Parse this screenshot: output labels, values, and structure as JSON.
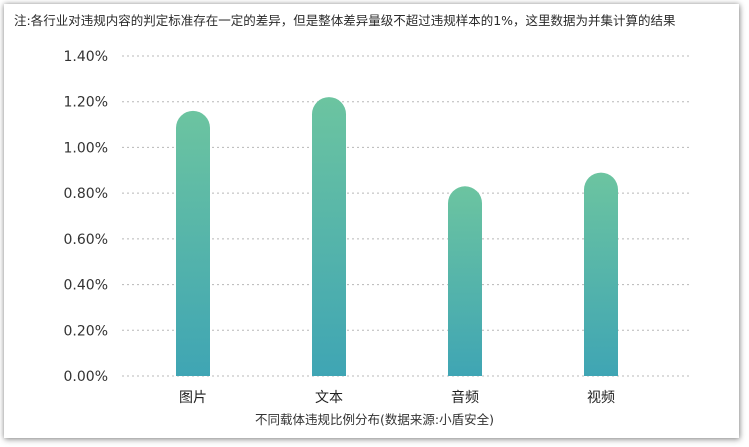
{
  "note": "注:各行业对违规内容的判定标准存在一定的差异，但是整体差异量级不超过违规样本的1%，这里数据为并集计算的结果",
  "source": "不同载体违规比例分布(数据来源:小盾安全)",
  "colors": {
    "bar_top": "#6cc4a0",
    "bar_bottom": "#3fa5b4",
    "grid": "#b8b8b8"
  },
  "chart_data": {
    "type": "bar",
    "categories": [
      "图片",
      "文本",
      "音频",
      "视频"
    ],
    "values": [
      1.16,
      1.22,
      0.83,
      0.89
    ],
    "title": "",
    "xlabel": "不同载体违规比例分布(数据来源:小盾安全)",
    "ylabel": "",
    "ylim": [
      0,
      1.4
    ],
    "yticks": [
      "0.00%",
      "0.20%",
      "0.40%",
      "0.60%",
      "0.80%",
      "1.00%",
      "1.20%",
      "1.40%"
    ],
    "grid": true,
    "legend": "none"
  }
}
